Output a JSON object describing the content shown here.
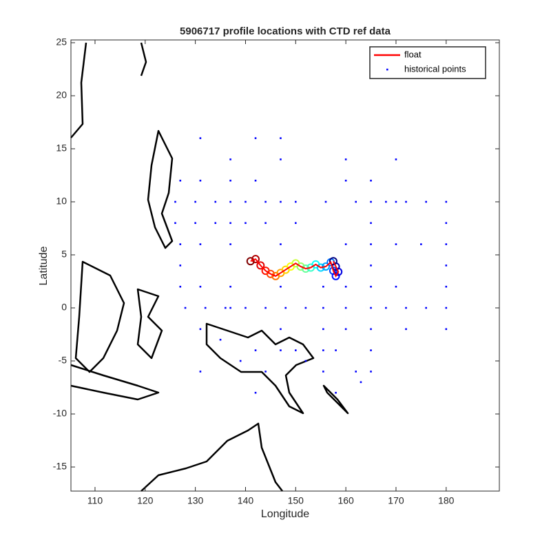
{
  "chart_data": {
    "type": "scatter",
    "title": "5906717 profile locations with CTD ref data",
    "x_label": "Longitude",
    "y_label": "Latitude",
    "xlim": [
      105.2,
      190.6
    ],
    "ylim": [
      -17.27,
      25.26
    ],
    "xticks": [
      110,
      120,
      130,
      140,
      150,
      160,
      170,
      180
    ],
    "yticks": [
      -15,
      -10,
      -5,
      0,
      5,
      10,
      15,
      20,
      25
    ],
    "legend": "upper right",
    "series": [
      {
        "name": "float",
        "color": "#ff0000",
        "x": [
          141,
          142,
          143,
          144,
          145,
          146,
          147,
          148,
          149,
          150,
          151,
          152,
          153,
          154,
          155,
          156,
          157,
          157.5,
          158,
          158.5,
          158,
          157.5
        ],
        "y": [
          4.4,
          4.6,
          4.0,
          3.5,
          3.2,
          3.0,
          3.3,
          3.6,
          3.9,
          4.2,
          3.9,
          3.7,
          3.8,
          4.1,
          3.8,
          3.9,
          4.3,
          3.5,
          3.0,
          3.4,
          3.9,
          4.4
        ]
      },
      {
        "name": "historical points",
        "color": "#0000ff",
        "x": [
          155.5,
          155.5,
          155.5,
          155.5,
          155.5,
          155.5,
          165,
          165,
          165,
          165,
          165,
          165,
          165,
          165,
          165,
          165,
          180,
          180,
          180,
          180,
          180,
          180,
          180,
          137,
          137,
          137,
          137,
          137,
          137,
          137,
          128,
          132,
          136,
          140,
          144,
          148,
          152,
          160,
          168,
          172,
          176,
          126,
          130,
          134,
          140,
          144,
          150,
          156,
          162,
          168,
          172,
          176,
          126,
          130,
          134,
          140,
          144,
          150,
          147,
          147,
          147,
          147,
          147,
          147,
          147,
          160,
          160,
          160,
          160,
          160,
          131,
          131,
          131,
          131,
          131,
          131,
          142,
          142,
          142,
          142,
          170,
          170,
          170,
          170,
          127,
          127,
          127,
          127,
          150,
          158,
          163,
          152,
          135,
          139,
          144,
          158,
          162,
          175,
          172
        ],
        "y": [
          -6,
          -4,
          -2,
          0,
          2,
          4,
          -6,
          -4,
          -2,
          0,
          2,
          4,
          6,
          8,
          10,
          12,
          -2,
          0,
          2,
          4,
          6,
          8,
          10,
          0,
          2,
          6,
          8,
          10,
          12,
          14,
          0,
          0,
          0,
          0,
          0,
          0,
          0,
          0,
          0,
          0,
          0,
          10,
          10,
          10,
          10,
          10,
          10,
          10,
          10,
          10,
          10,
          10,
          8,
          8,
          8,
          8,
          8,
          8,
          -4,
          -2,
          2,
          6,
          10,
          14,
          16,
          -2,
          2,
          6,
          12,
          14,
          -6,
          -2,
          2,
          6,
          12,
          16,
          -8,
          -4,
          12,
          16,
          2,
          6,
          10,
          14,
          2,
          4,
          6,
          12,
          -4,
          -8,
          -7,
          -5,
          -3,
          -5,
          -6,
          -4,
          -6,
          6,
          -2
        ]
      }
    ]
  }
}
